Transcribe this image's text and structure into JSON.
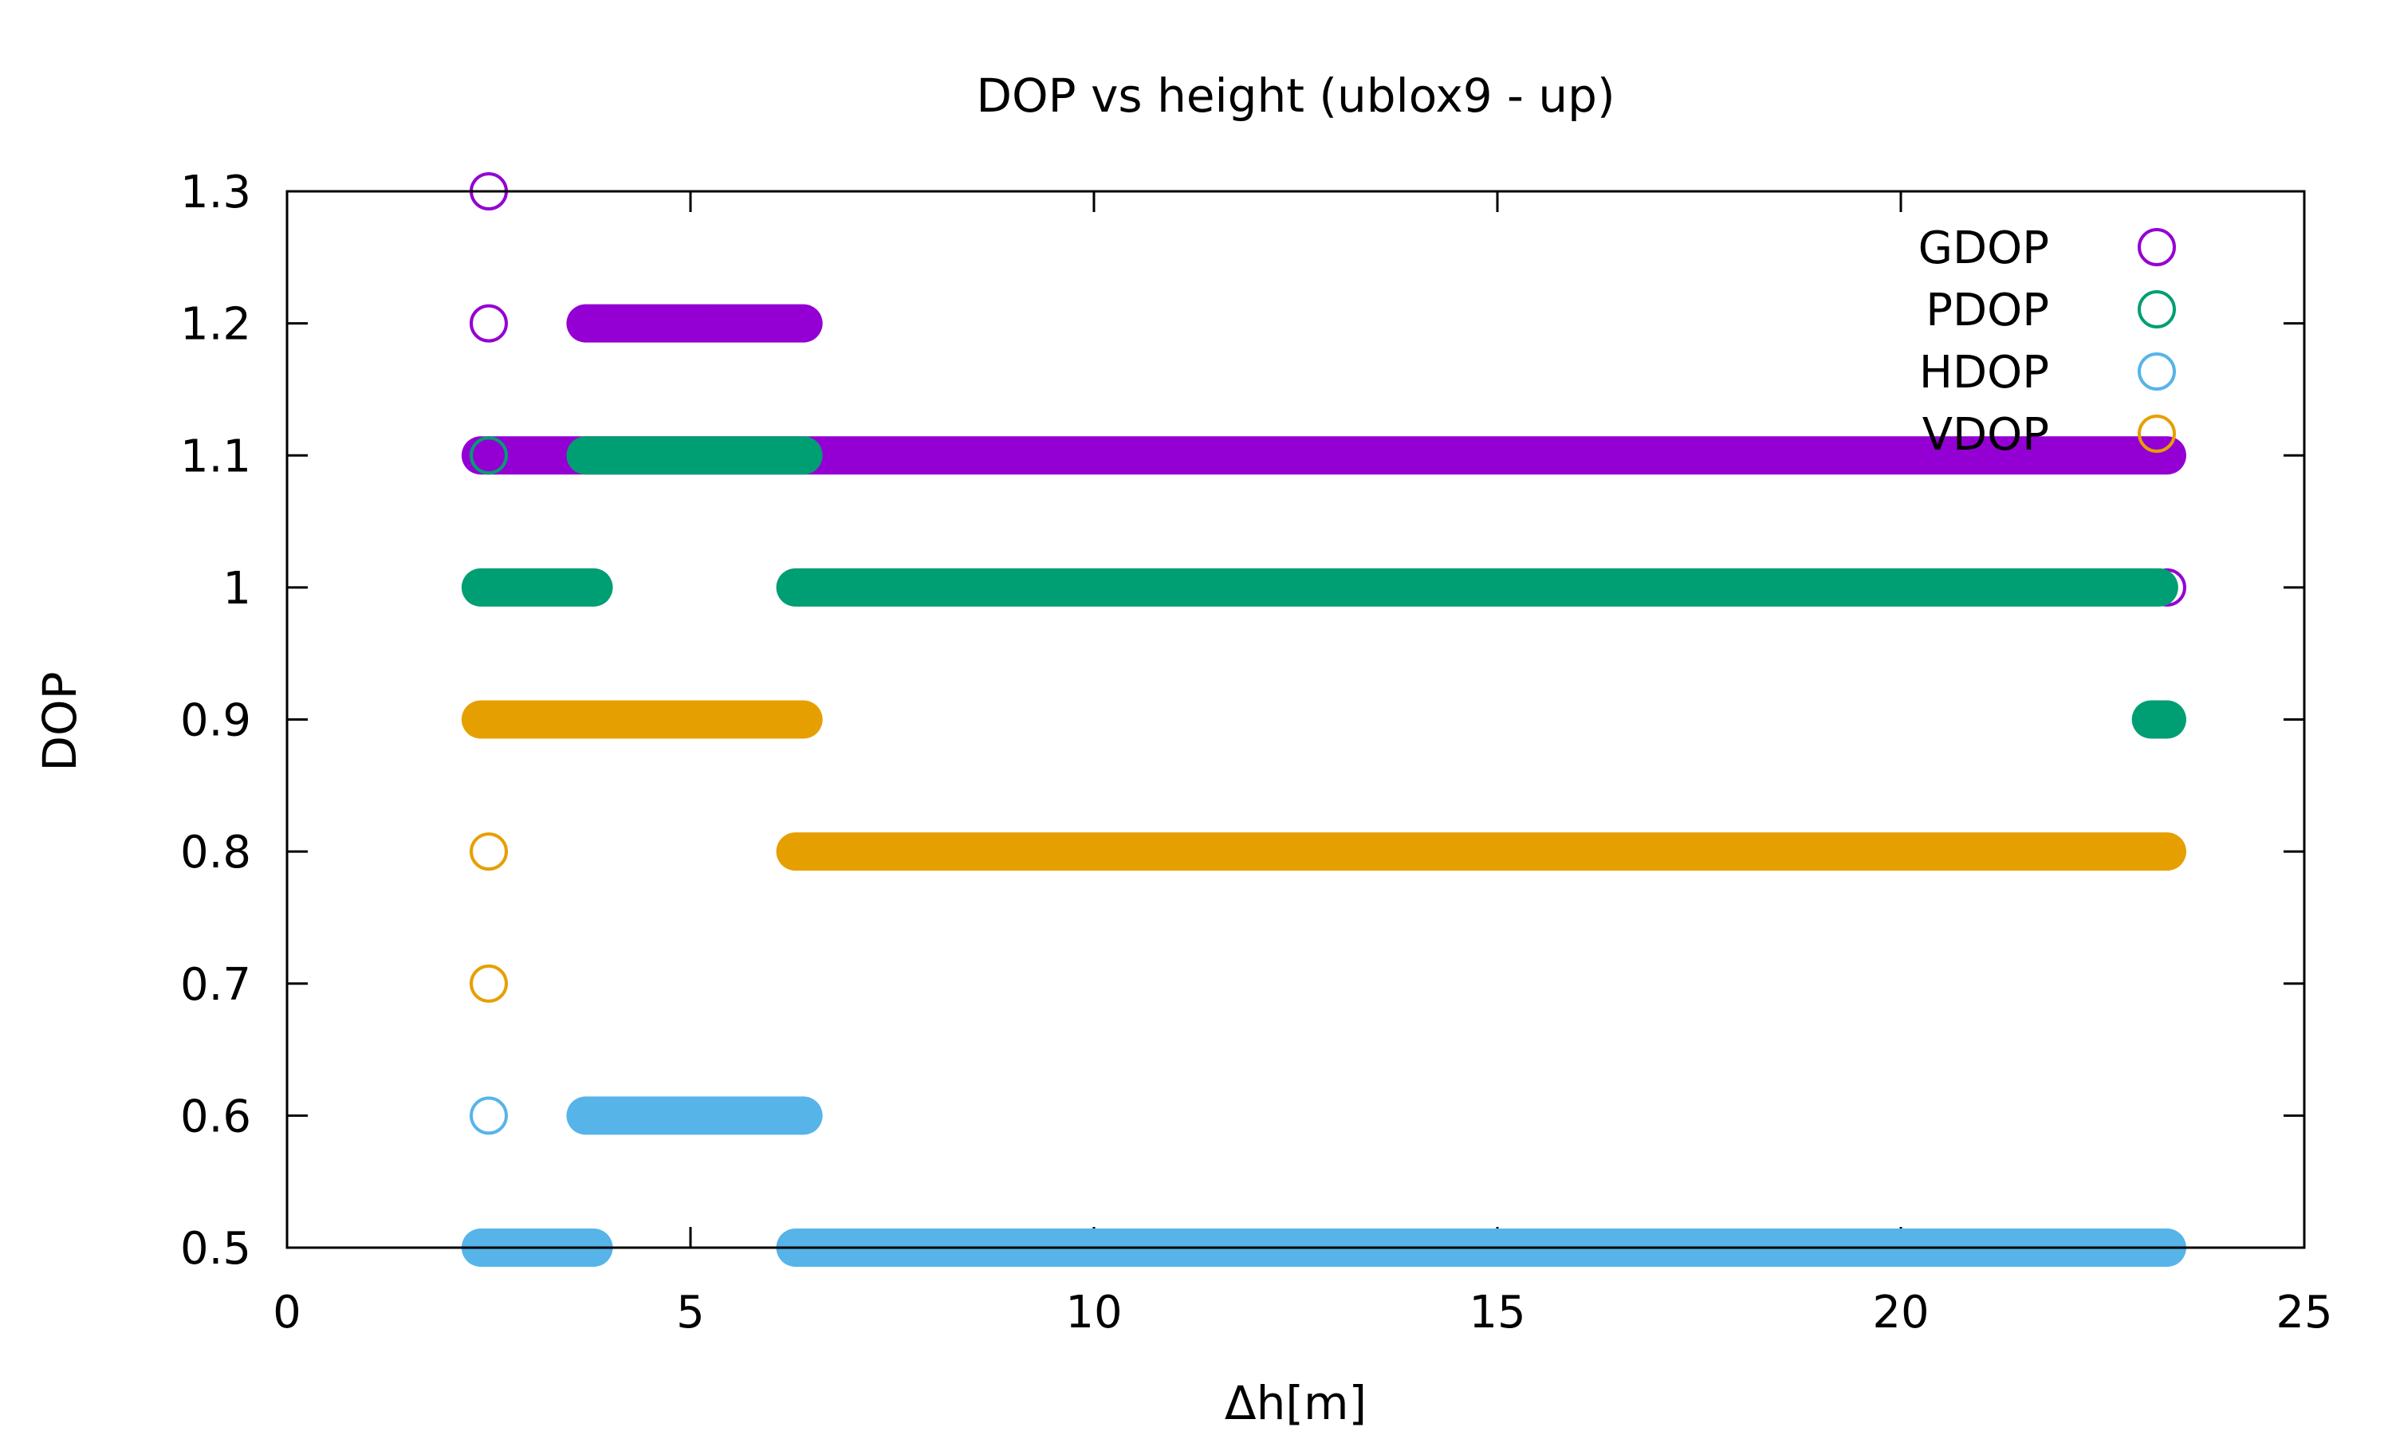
{
  "chart_data": {
    "type": "scatter",
    "title": "DOP vs height (ublox9 - up)",
    "xlabel": "Δh[m]",
    "ylabel": "DOP",
    "xlim": [
      0,
      25
    ],
    "ylim": [
      0.5,
      1.3
    ],
    "xticks": [
      "0",
      "5",
      "10",
      "15",
      "20",
      "25"
    ],
    "yticks": [
      "0.5",
      "0.6",
      "0.7",
      "0.8",
      "0.9",
      "1",
      "1.1",
      "1.2",
      "1.3"
    ],
    "legend_position": "top-right",
    "marker": "open-circle",
    "series": [
      {
        "name": "GDOP",
        "color": "#9400d3",
        "points": [
          [
            2.5,
            1.3
          ],
          [
            2.5,
            1.2
          ],
          [
            2.5,
            1.1
          ],
          [
            23.3,
            1.0
          ]
        ],
        "runs": [
          {
            "y": 1.2,
            "x_start": 3.7,
            "x_end": 6.4
          },
          {
            "y": 1.1,
            "x_start": 2.4,
            "x_end": 23.3
          }
        ]
      },
      {
        "name": "PDOP",
        "color": "#009e73",
        "points": [
          [
            2.5,
            1.1
          ]
        ],
        "runs": [
          {
            "y": 1.1,
            "x_start": 3.7,
            "x_end": 6.4
          },
          {
            "y": 1.0,
            "x_start": 2.4,
            "x_end": 3.8
          },
          {
            "y": 1.0,
            "x_start": 6.3,
            "x_end": 23.2
          },
          {
            "y": 0.9,
            "x_start": 23.1,
            "x_end": 23.3
          }
        ]
      },
      {
        "name": "HDOP",
        "color": "#56b4e9",
        "points": [
          [
            2.5,
            0.6
          ]
        ],
        "runs": [
          {
            "y": 0.6,
            "x_start": 3.7,
            "x_end": 6.4
          },
          {
            "y": 0.5,
            "x_start": 2.4,
            "x_end": 3.8
          },
          {
            "y": 0.5,
            "x_start": 6.3,
            "x_end": 23.3
          }
        ]
      },
      {
        "name": "VDOP",
        "color": "#e69f00",
        "points": [
          [
            2.5,
            0.8
          ],
          [
            2.5,
            0.7
          ]
        ],
        "runs": [
          {
            "y": 0.9,
            "x_start": 2.4,
            "x_end": 6.4
          },
          {
            "y": 0.8,
            "x_start": 6.3,
            "x_end": 23.3
          }
        ]
      }
    ]
  }
}
